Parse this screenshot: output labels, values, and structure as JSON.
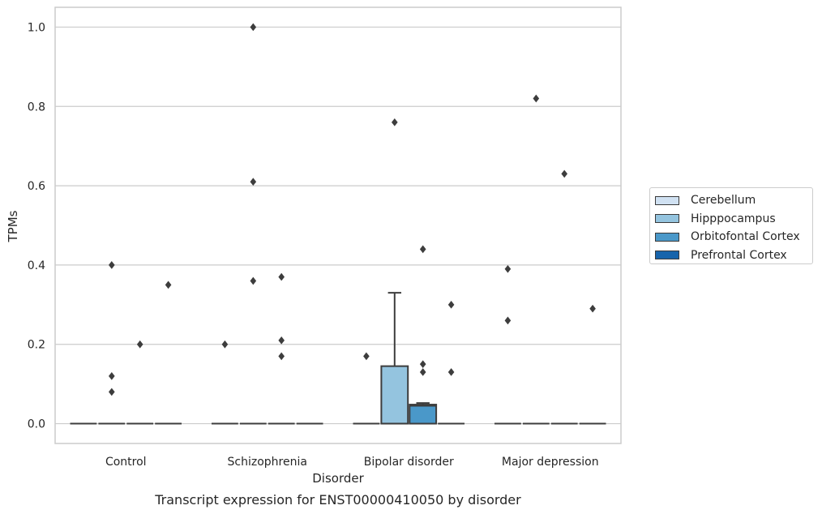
{
  "chart_data": {
    "type": "box",
    "title": "Transcript expression for ENST00000410050 by disorder",
    "xlabel": "Disorder",
    "ylabel": "TPMs",
    "ylim": [
      -0.05,
      1.05
    ],
    "yticks": [
      0.0,
      0.2,
      0.4,
      0.6,
      0.8,
      1.0
    ],
    "ytick_labels": [
      "0.0",
      "0.2",
      "0.4",
      "0.6",
      "0.8",
      "1.0"
    ],
    "grid": true,
    "legend_position": "right",
    "categories": [
      "Control",
      "Schizophrenia",
      "Bipolar disorder",
      "Major depression"
    ],
    "series": [
      {
        "name": "Cerebellum",
        "color": "#d0e1f2",
        "boxes": [
          {
            "category": "Control",
            "min": 0,
            "q1": 0,
            "median": 0,
            "q3": 0,
            "max": 0,
            "outliers": []
          },
          {
            "category": "Schizophrenia",
            "min": 0,
            "q1": 0,
            "median": 0,
            "q3": 0,
            "max": 0,
            "outliers": [
              0.2
            ]
          },
          {
            "category": "Bipolar disorder",
            "min": 0,
            "q1": 0,
            "median": 0,
            "q3": 0,
            "max": 0,
            "outliers": [
              0.17
            ]
          },
          {
            "category": "Major depression",
            "min": 0,
            "q1": 0,
            "median": 0,
            "q3": 0,
            "max": 0,
            "outliers": [
              0.39,
              0.26
            ]
          }
        ]
      },
      {
        "name": "Hipppocampus",
        "color": "#94c4df",
        "boxes": [
          {
            "category": "Control",
            "min": 0,
            "q1": 0,
            "median": 0,
            "q3": 0,
            "max": 0,
            "outliers": [
              0.4,
              0.12,
              0.08
            ]
          },
          {
            "category": "Schizophrenia",
            "min": 0,
            "q1": 0,
            "median": 0,
            "q3": 0,
            "max": 0,
            "outliers": [
              1.0,
              0.61,
              0.36
            ]
          },
          {
            "category": "Bipolar disorder",
            "min": 0,
            "q1": 0,
            "median": 0,
            "q3": 0.145,
            "max": 0.33,
            "outliers": [
              0.76
            ]
          },
          {
            "category": "Major depression",
            "min": 0,
            "q1": 0,
            "median": 0,
            "q3": 0,
            "max": 0,
            "outliers": [
              0.82
            ]
          }
        ]
      },
      {
        "name": "Orbitofontal Cortex",
        "color": "#4a98c9",
        "boxes": [
          {
            "category": "Control",
            "min": 0,
            "q1": 0,
            "median": 0,
            "q3": 0,
            "max": 0,
            "outliers": [
              0.2
            ]
          },
          {
            "category": "Schizophrenia",
            "min": 0,
            "q1": 0,
            "median": 0,
            "q3": 0,
            "max": 0,
            "outliers": [
              0.37,
              0.21,
              0.17
            ]
          },
          {
            "category": "Bipolar disorder",
            "min": 0,
            "q1": 0,
            "median": 0.045,
            "q3": 0.048,
            "max": 0.052,
            "outliers": [
              0.44,
              0.15,
              0.13
            ]
          },
          {
            "category": "Major depression",
            "min": 0,
            "q1": 0,
            "median": 0,
            "q3": 0,
            "max": 0,
            "outliers": [
              0.63
            ]
          }
        ]
      },
      {
        "name": "Prefrontal Cortex",
        "color": "#1764ab",
        "boxes": [
          {
            "category": "Control",
            "min": 0,
            "q1": 0,
            "median": 0,
            "q3": 0,
            "max": 0,
            "outliers": [
              0.35
            ]
          },
          {
            "category": "Schizophrenia",
            "min": 0,
            "q1": 0,
            "median": 0,
            "q3": 0,
            "max": 0,
            "outliers": []
          },
          {
            "category": "Bipolar disorder",
            "min": 0,
            "q1": 0,
            "median": 0,
            "q3": 0,
            "max": 0,
            "outliers": [
              0.3,
              0.13
            ]
          },
          {
            "category": "Major depression",
            "min": 0,
            "q1": 0,
            "median": 0,
            "q3": 0,
            "max": 0,
            "outliers": [
              0.29
            ]
          }
        ]
      }
    ]
  }
}
